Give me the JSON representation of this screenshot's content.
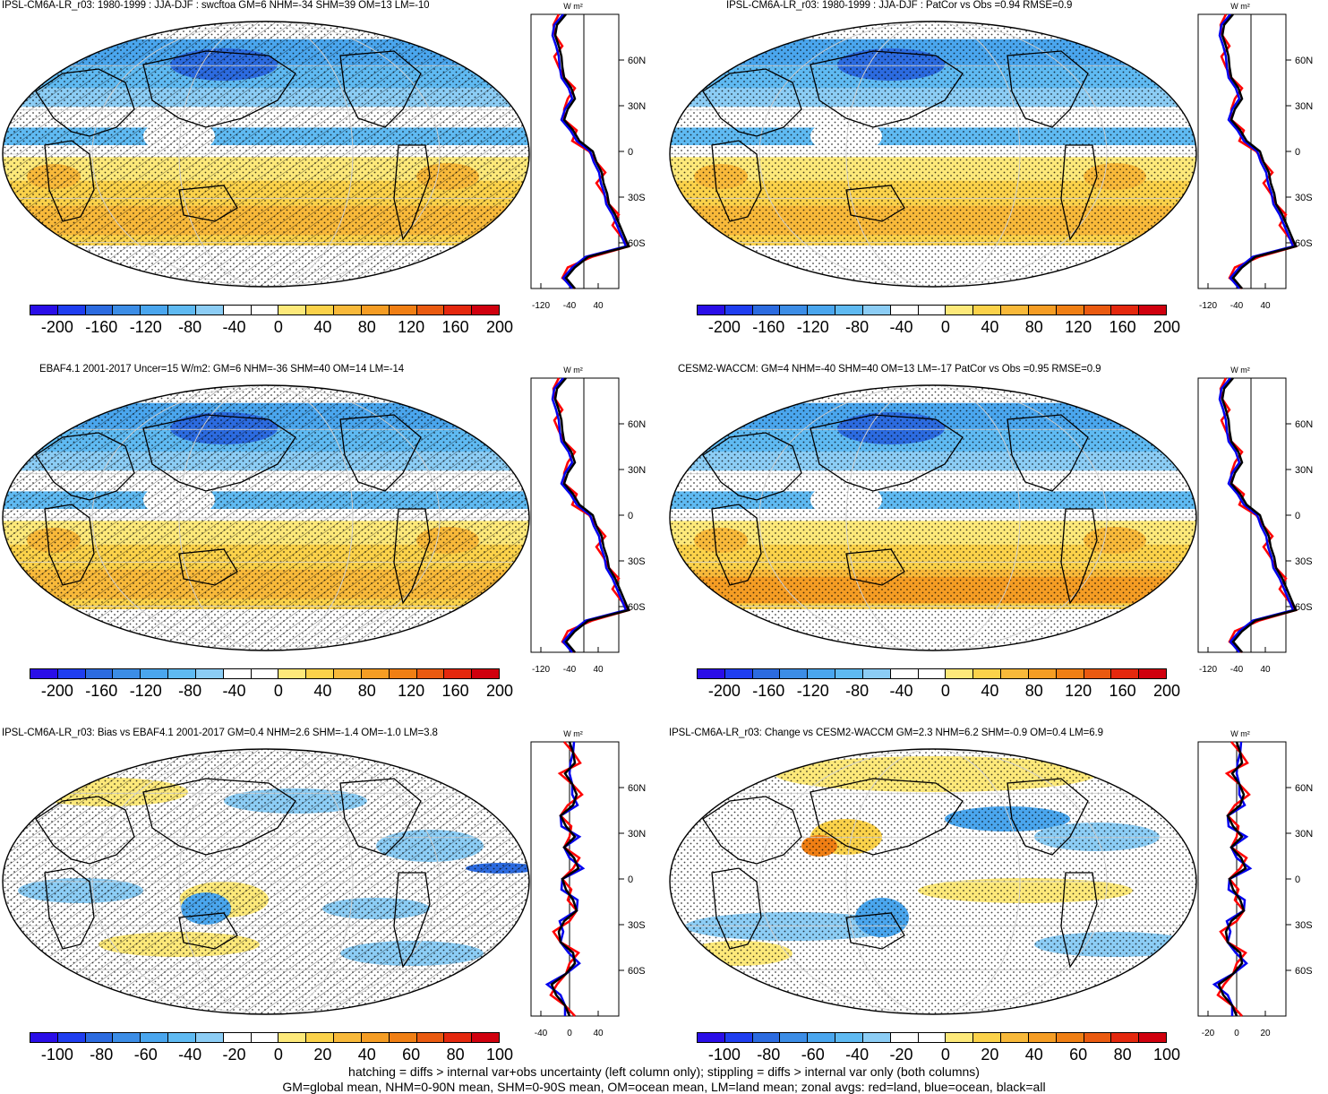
{
  "panels": [
    {
      "title": "IPSL-CM6A-LR_r03: 1980-1999 : JJA-DJF : swcftoa GM=6 NHM=-34 SHM=39 OM=13 LM=-10",
      "hatched": true,
      "zonal": {
        "unit": "W m²",
        "xticks": [
          "-120",
          "-40",
          "40"
        ],
        "lat_labels": [
          "60N",
          "30N",
          "0",
          "30S",
          "60S"
        ]
      },
      "colorbar": {
        "labels": [
          "-200",
          "-160",
          "-120",
          "-80",
          "-40",
          "0",
          "40",
          "80",
          "120",
          "160",
          "200"
        ]
      }
    },
    {
      "title": "IPSL-CM6A-LR_r03: 1980-1999 : JJA-DJF : PatCor vs Obs =0.94 RMSE=0.9",
      "hatched": false,
      "zonal": {
        "unit": "W m²",
        "xticks": [
          "-120",
          "-40",
          "40"
        ],
        "lat_labels": [
          "60N",
          "30N",
          "0",
          "30S",
          "60S"
        ]
      },
      "colorbar": {
        "labels": [
          "-200",
          "-160",
          "-120",
          "-80",
          "-40",
          "0",
          "40",
          "80",
          "120",
          "160",
          "200"
        ]
      }
    },
    {
      "title": "EBAF4.1 2001-2017 Uncer=15 W/m2: GM=6 NHM=-36 SHM=40 OM=14 LM=-14",
      "hatched": true,
      "zonal": {
        "unit": "W m²",
        "xticks": [
          "-120",
          "-40",
          "40"
        ],
        "lat_labels": [
          "60N",
          "30N",
          "0",
          "30S",
          "60S"
        ]
      },
      "colorbar": {
        "labels": [
          "-200",
          "-160",
          "-120",
          "-80",
          "-40",
          "0",
          "40",
          "80",
          "120",
          "160",
          "200"
        ]
      }
    },
    {
      "title": "CESM2-WACCM: GM=4 NHM=-40 SHM=40 OM=13 LM=-17 PatCor vs Obs =0.95 RMSE=0.9",
      "hatched": false,
      "zonal": {
        "unit": "W m²",
        "xticks": [
          "-120",
          "-40",
          "40"
        ],
        "lat_labels": [
          "60N",
          "30N",
          "0",
          "30S",
          "60S"
        ]
      },
      "colorbar": {
        "labels": [
          "-200",
          "-160",
          "-120",
          "-80",
          "-40",
          "0",
          "40",
          "80",
          "120",
          "160",
          "200"
        ]
      }
    },
    {
      "title": "IPSL-CM6A-LR_r03: Bias vs EBAF4.1 2001-2017 GM=0.4 NHM=2.6 SHM=-1.4 OM=-1.0 LM=3.8",
      "hatched": true,
      "zonal": {
        "unit": "W m²",
        "xticks": [
          "-40",
          "0",
          "40"
        ],
        "lat_labels": [
          "60N",
          "30N",
          "0",
          "30S",
          "60S"
        ]
      },
      "colorbar": {
        "labels": [
          "-100",
          "-80",
          "-60",
          "-40",
          "-20",
          "0",
          "20",
          "40",
          "60",
          "80",
          "100"
        ]
      }
    },
    {
      "title": "IPSL-CM6A-LR_r03: Change vs CESM2-WACCM GM=2.3 NHM=6.2 SHM=-0.9 OM=0.4 LM=6.9",
      "hatched": false,
      "zonal": {
        "unit": "W m²",
        "xticks": [
          "-20",
          "0",
          "20"
        ],
        "lat_labels": [
          "60N",
          "30N",
          "0",
          "30S",
          "60S"
        ]
      },
      "colorbar": {
        "labels": [
          "-100",
          "-80",
          "-60",
          "-40",
          "-20",
          "0",
          "20",
          "40",
          "60",
          "80",
          "100"
        ]
      }
    }
  ],
  "colorbar_colors": [
    "#2a0ee8",
    "#1f3ef0",
    "#2c6be0",
    "#3c8de6",
    "#4aa6ee",
    "#5fbaf2",
    "#8ccdf5",
    "#ffffff",
    "#ffffff",
    "#fde97a",
    "#fbd24a",
    "#f8b93a",
    "#f59d24",
    "#f07f14",
    "#ea5a10",
    "#e4280e",
    "#d0000e"
  ],
  "footnote": {
    "line1": "hatching = diffs > internal var+obs uncertainty (left column only); stippling = diffs > internal var only (both columns)",
    "line2": "GM=global mean, NHM=0-90N mean, SHM=0-90S mean, OM=ocean mean, LM=land mean; zonal avgs: red=land, blue=ocean, black=all"
  }
}
